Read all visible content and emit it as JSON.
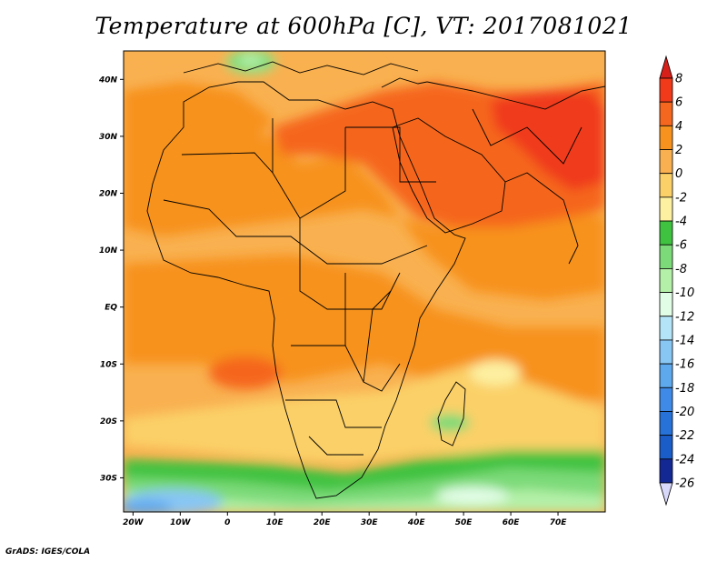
{
  "title": "Temperature at 600hPa [C], VT: 2017081021",
  "credit": "GrADS: IGES/COLA",
  "map": {
    "lon_range": [
      -22,
      80
    ],
    "lat_range": [
      -36,
      45
    ],
    "x_ticks": [
      {
        "lon": -20,
        "label": "20W"
      },
      {
        "lon": -10,
        "label": "10W"
      },
      {
        "lon": 0,
        "label": "0"
      },
      {
        "lon": 10,
        "label": "10E"
      },
      {
        "lon": 20,
        "label": "20E"
      },
      {
        "lon": 30,
        "label": "30E"
      },
      {
        "lon": 40,
        "label": "40E"
      },
      {
        "lon": 50,
        "label": "50E"
      },
      {
        "lon": 60,
        "label": "60E"
      },
      {
        "lon": 70,
        "label": "70E"
      }
    ],
    "y_ticks": [
      {
        "lat": 40,
        "label": "40N"
      },
      {
        "lat": 30,
        "label": "30N"
      },
      {
        "lat": 20,
        "label": "20N"
      },
      {
        "lat": 10,
        "label": "10N"
      },
      {
        "lat": 0,
        "label": "EQ"
      },
      {
        "lat": -10,
        "label": "10S"
      },
      {
        "lat": -20,
        "label": "20S"
      },
      {
        "lat": -30,
        "label": "30S"
      }
    ]
  },
  "colorbar": {
    "levels": [
      "8",
      "6",
      "4",
      "2",
      "0",
      "-2",
      "-4",
      "-6",
      "-8",
      "-10",
      "-12",
      "-14",
      "-16",
      "-18",
      "-20",
      "-22",
      "-24",
      "-26"
    ],
    "colors_top_to_bottom": [
      "#f03a1a",
      "#f5661e",
      "#f7921e",
      "#f9b050",
      "#fbd068",
      "#fdf0a0",
      "#3fc23f",
      "#7cda78",
      "#b4f0a8",
      "#e2fde6",
      "#b4e4f8",
      "#88c6f4",
      "#5ea8ee",
      "#3e8ae6",
      "#2672d8",
      "#1a5cc8",
      "#142894"
    ],
    "top_arrow_color": "#d8201a",
    "bottom_arrow_color": "#d8d8fa"
  },
  "chart_data": {
    "type": "heatmap",
    "title": "Temperature at 600hPa [C], VT: 2017081021",
    "units": "C",
    "levels": [
      8,
      6,
      4,
      2,
      0,
      -2,
      -4,
      -6,
      -8,
      -10,
      -12,
      -14,
      -16,
      -18,
      -20,
      -22,
      -24,
      -26
    ],
    "x_ticks": [
      "20W",
      "10W",
      "0",
      "10E",
      "20E",
      "30E",
      "40E",
      "50E",
      "60E",
      "70E"
    ],
    "y_ticks": [
      "40N",
      "30N",
      "20N",
      "10N",
      "EQ",
      "10S",
      "20S",
      "30S"
    ],
    "xlim": [
      -22,
      80
    ],
    "ylim": [
      -36,
      45
    ]
  }
}
